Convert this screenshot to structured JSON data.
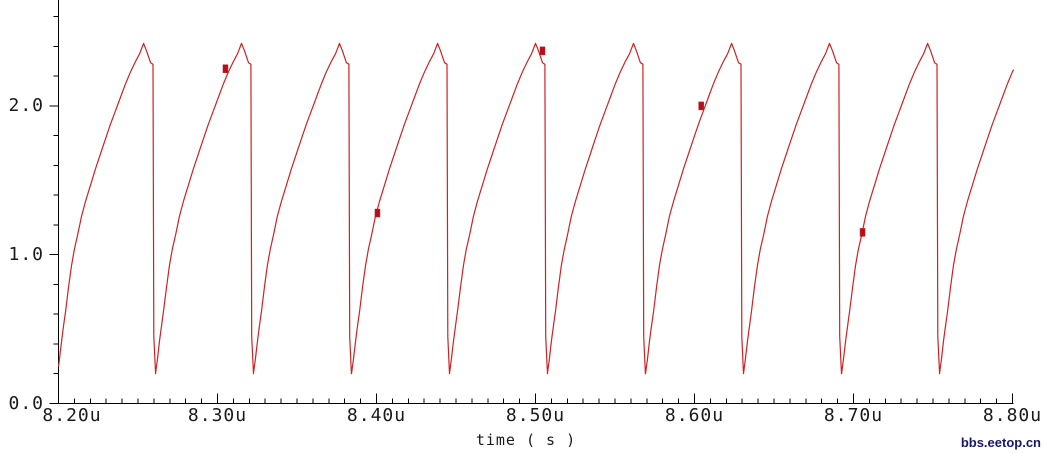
{
  "watermark": "bbs.eetop.cn",
  "colors": {
    "trace": "#cc2222",
    "marker": "#b50f1d",
    "axis": "#000000",
    "text": "#1a1a1a",
    "watermark": "#18186b",
    "background": "#ffffff"
  },
  "chart_data": {
    "type": "line",
    "title": "",
    "xlabel": "time ( s )",
    "ylabel": "",
    "grid": false,
    "legend": null,
    "x_unit": "u",
    "x_range": [
      8.2,
      8.8
    ],
    "y_range": [
      0,
      2.71
    ],
    "x_ticks": [
      "8.20u",
      "8.30u",
      "8.40u",
      "8.50u",
      "8.60u",
      "8.70u",
      "8.80u"
    ],
    "x_tick_values": [
      8.2,
      8.3,
      8.4,
      8.5,
      8.6,
      8.7,
      8.8
    ],
    "x_minor_tick_step": 0.01,
    "y_ticks": [
      "0.0",
      "1.0",
      "2.0"
    ],
    "y_tick_values": [
      0,
      1,
      2
    ],
    "y_minor_tick_step": 0.2,
    "waveform": {
      "description": "periodic relaxation-oscillator ramp: concave charging rise, small post-peak shoulder, near-vertical reset",
      "period_us": 0.06164,
      "trough_value": 0.2,
      "peak_value": 2.42,
      "post_peak_shoulder_value": 2.29,
      "trough_times_us": [
        8.1994,
        8.261,
        8.3226,
        8.3843,
        8.4459,
        8.5075,
        8.5692,
        8.6308,
        8.6925,
        8.7541
      ],
      "peak_times_us": [
        8.2535,
        8.3151,
        8.3767,
        8.4384,
        8.5,
        8.5616,
        8.6233,
        8.6849,
        8.7465
      ],
      "cycle_profile": [
        [
          0,
          0.2
        ],
        [
          0.02,
          0.3
        ],
        [
          0.041,
          0.42
        ],
        [
          0.061,
          0.52
        ],
        [
          0.082,
          0.62
        ],
        [
          0.112,
          0.78
        ],
        [
          0.143,
          0.93
        ],
        [
          0.173,
          1.04
        ],
        [
          0.204,
          1.13
        ],
        [
          0.245,
          1.26
        ],
        [
          0.286,
          1.36
        ],
        [
          0.337,
          1.47
        ],
        [
          0.388,
          1.58
        ],
        [
          0.439,
          1.68
        ],
        [
          0.49,
          1.78
        ],
        [
          0.541,
          1.88
        ],
        [
          0.592,
          1.97
        ],
        [
          0.643,
          2.06
        ],
        [
          0.694,
          2.15
        ],
        [
          0.745,
          2.23
        ],
        [
          0.796,
          2.3
        ],
        [
          0.837,
          2.35
        ],
        [
          0.878,
          2.42
        ],
        [
          0.908,
          2.37
        ],
        [
          0.949,
          2.29
        ],
        [
          0.974,
          2.28
        ],
        [
          0.982,
          0.45
        ],
        [
          1,
          0.2
        ]
      ]
    },
    "markers": [
      {
        "time_us": 8.305,
        "value": 2.25
      },
      {
        "time_us": 8.4006,
        "value": 1.28
      },
      {
        "time_us": 8.5044,
        "value": 2.37
      },
      {
        "time_us": 8.6042,
        "value": 2.0
      },
      {
        "time_us": 8.7057,
        "value": 1.15
      }
    ]
  }
}
